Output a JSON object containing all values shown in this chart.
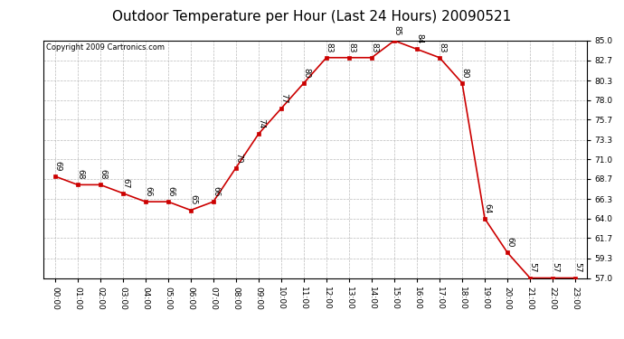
{
  "title": "Outdoor Temperature per Hour (Last 24 Hours) 20090521",
  "copyright": "Copyright 2009 Cartronics.com",
  "hours": [
    0,
    1,
    2,
    3,
    4,
    5,
    6,
    7,
    8,
    9,
    10,
    11,
    12,
    13,
    14,
    15,
    16,
    17,
    18,
    19,
    20,
    21,
    22,
    23
  ],
  "temps": [
    69,
    68,
    68,
    67,
    66,
    66,
    65,
    66,
    70,
    74,
    77,
    80,
    83,
    83,
    83,
    85,
    84,
    83,
    80,
    64,
    60,
    57,
    57,
    57
  ],
  "xlabels": [
    "00:00",
    "01:00",
    "02:00",
    "03:00",
    "04:00",
    "05:00",
    "06:00",
    "07:00",
    "08:00",
    "09:00",
    "10:00",
    "11:00",
    "12:00",
    "13:00",
    "14:00",
    "15:00",
    "16:00",
    "17:00",
    "18:00",
    "19:00",
    "20:00",
    "21:00",
    "22:00",
    "23:00"
  ],
  "yticks": [
    57.0,
    59.3,
    61.7,
    64.0,
    66.3,
    68.7,
    71.0,
    73.3,
    75.7,
    78.0,
    80.3,
    82.7,
    85.0
  ],
  "ylim": [
    57.0,
    85.0
  ],
  "line_color": "#cc0000",
  "marker_color": "#cc0000",
  "bg_color": "#ffffff",
  "plot_bg_color": "#ffffff",
  "grid_color": "#bbbbbb",
  "title_fontsize": 11,
  "label_fontsize": 6.5,
  "annotation_fontsize": 6.5,
  "copyright_fontsize": 6
}
